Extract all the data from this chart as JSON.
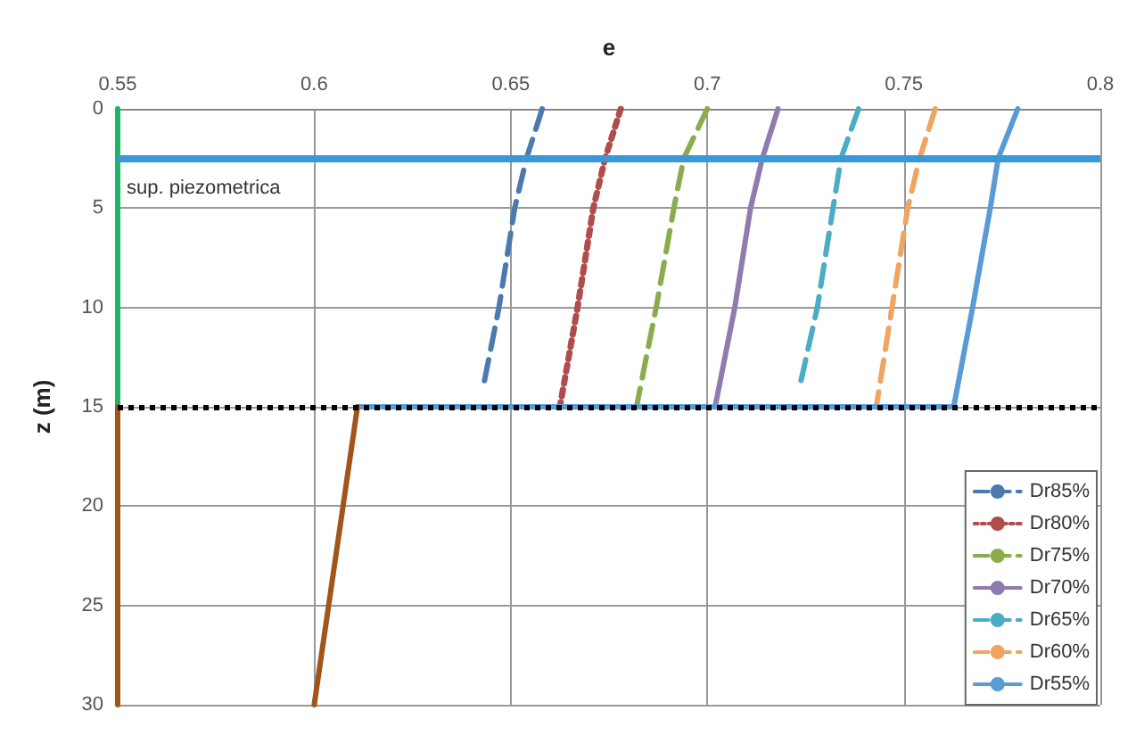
{
  "chart_data": {
    "type": "line",
    "xlabel": "e",
    "ylabel": "z (m)",
    "xlim": [
      0.55,
      0.8
    ],
    "xticks": [
      0.55,
      0.6,
      0.65,
      0.7,
      0.75,
      0.8
    ],
    "ylim": [
      30,
      0
    ],
    "yticks": [
      0,
      5,
      10,
      15,
      20,
      25,
      30
    ],
    "grid": true,
    "legend": "bottom right",
    "marker": "none",
    "ref_lines": [
      {
        "axis": "y",
        "value": 15,
        "color": "#000000",
        "line_style": "dotted"
      },
      {
        "axis": "y",
        "value": 2.5,
        "label": "sup. piezometrica",
        "color": "#3a97d8",
        "line_style": "solid"
      }
    ],
    "series": [
      {
        "name": "Dr85%",
        "color": "#4a7ab0",
        "line_style": "dashed",
        "x": [
          0.658,
          0.654,
          0.651,
          0.647,
          0.643
        ],
        "values": [
          0,
          2.5,
          5,
          10,
          14
        ]
      },
      {
        "name": "Dr80%",
        "color": "#b04c4c",
        "line_style": "dotted",
        "x": [
          0.678,
          0.674,
          0.671,
          0.667,
          0.6625
        ],
        "values": [
          0,
          2.5,
          5,
          10,
          15
        ]
      },
      {
        "name": "Dr75%",
        "color": "#8aac4c",
        "line_style": "dashed",
        "x": [
          0.7,
          0.694,
          0.6915,
          0.687,
          0.682
        ],
        "values": [
          0,
          2.5,
          5,
          10,
          15
        ]
      },
      {
        "name": "Dr70%",
        "color": "#8e7cb0",
        "line_style": "solid",
        "x": [
          0.718,
          0.714,
          0.711,
          0.707,
          0.702
        ],
        "values": [
          0,
          2.5,
          5,
          10,
          15
        ]
      },
      {
        "name": "Dr65%",
        "color": "#4bacc6",
        "line_style": "dashed",
        "x": [
          0.7385,
          0.734,
          0.732,
          0.728,
          0.7235
        ],
        "values": [
          0,
          2.5,
          5,
          10,
          14
        ]
      },
      {
        "name": "Dr60%",
        "color": "#f0a460",
        "line_style": "dashed",
        "x": [
          0.758,
          0.754,
          0.751,
          0.747,
          0.743
        ],
        "values": [
          0,
          2.5,
          5,
          10,
          15
        ]
      },
      {
        "name": "Dr55%",
        "color": "#5b9bd5",
        "line_style": "solid",
        "x": [
          0.779,
          0.774,
          0.772,
          0.7675,
          0.7627,
          0.611
        ],
        "values": [
          0,
          2.5,
          5,
          10,
          15,
          15
        ]
      },
      {
        "color": "#1fb36a",
        "line_style": "solid",
        "x": [
          0.55,
          0.55
        ],
        "values": [
          0,
          15
        ]
      },
      {
        "color": "#a0561b",
        "line_style": "solid",
        "x": [
          0.55,
          0.55
        ],
        "values": [
          15,
          30
        ]
      },
      {
        "color": "#a0561b",
        "line_style": "solid",
        "x": [
          0.611,
          0.6
        ],
        "values": [
          15,
          30
        ]
      }
    ]
  }
}
